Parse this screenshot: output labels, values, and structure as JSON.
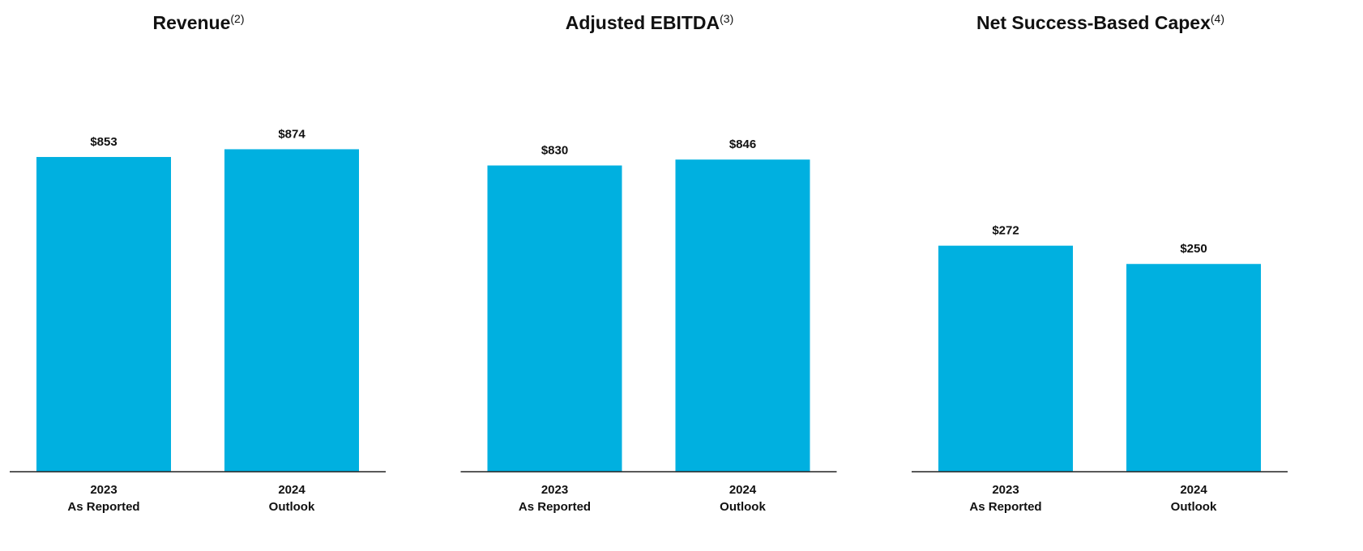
{
  "chart_data": [
    {
      "type": "bar",
      "title": "Revenue",
      "title_note": "(2)",
      "categories": [
        [
          "2023",
          "As Reported"
        ],
        [
          "2024",
          "Outlook"
        ]
      ],
      "values": [
        853,
        874
      ],
      "value_labels": [
        "$853",
        "$874"
      ],
      "color": "#00b0e0",
      "ylim": [
        0,
        1000
      ]
    },
    {
      "type": "bar",
      "title": "Adjusted EBITDA",
      "title_note": "(3)",
      "categories": [
        [
          "2023",
          "As Reported"
        ],
        [
          "2024",
          "Outlook"
        ]
      ],
      "values": [
        830,
        846
      ],
      "value_labels": [
        "$830",
        "$846"
      ],
      "color": "#00b0e0",
      "ylim": [
        0,
        1000
      ]
    },
    {
      "type": "bar",
      "title": "Net Success-Based Capex",
      "title_note": "(4)",
      "categories": [
        [
          "2023",
          "As Reported"
        ],
        [
          "2024",
          "Outlook"
        ]
      ],
      "values": [
        272,
        250
      ],
      "value_labels": [
        "$272",
        "$250"
      ],
      "color": "#00b0e0",
      "ylim": [
        0,
        444
      ]
    }
  ]
}
